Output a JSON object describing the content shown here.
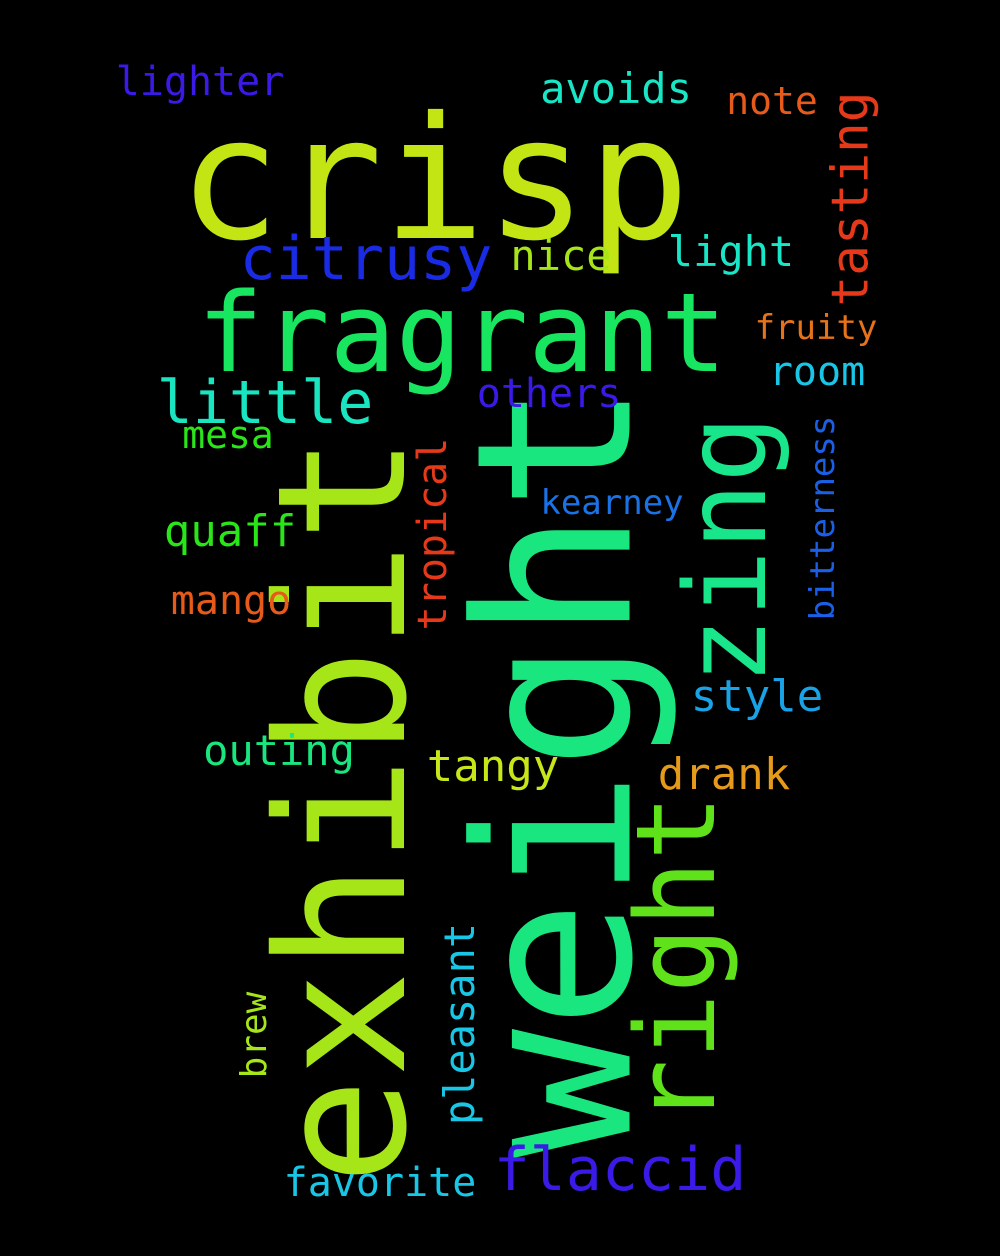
{
  "words": [
    {
      "id": "crisp",
      "text": "crisp",
      "color": "#c3e514"
    },
    {
      "id": "weight",
      "text": "weight",
      "color": "#19e67f"
    },
    {
      "id": "exhibit",
      "text": "exhibit",
      "color": "#a6e619"
    },
    {
      "id": "fragrant",
      "text": "fragrant",
      "color": "#19e660"
    },
    {
      "id": "right",
      "text": "right",
      "color": "#5fe21a"
    },
    {
      "id": "zing",
      "text": "zing",
      "color": "#19e68b"
    },
    {
      "id": "citrusy",
      "text": "citrusy",
      "color": "#1a2be6"
    },
    {
      "id": "flaccid",
      "text": "flaccid",
      "color": "#3a1ae6"
    },
    {
      "id": "little",
      "text": "little",
      "color": "#19e6c0"
    },
    {
      "id": "tasting",
      "text": "tasting",
      "color": "#e6391a"
    },
    {
      "id": "lighter",
      "text": "lighter",
      "color": "#3a1ae6"
    },
    {
      "id": "avoids",
      "text": "avoids",
      "color": "#19e6c6"
    },
    {
      "id": "note",
      "text": "note",
      "color": "#e65a1a"
    },
    {
      "id": "nice",
      "text": "nice",
      "color": "#a6e619"
    },
    {
      "id": "light",
      "text": "light",
      "color": "#19e6c6"
    },
    {
      "id": "fruity",
      "text": "fruity",
      "color": "#e6721a"
    },
    {
      "id": "room",
      "text": "room",
      "color": "#19c6e6"
    },
    {
      "id": "others",
      "text": "others",
      "color": "#3a1ae6"
    },
    {
      "id": "mesa",
      "text": "mesa",
      "color": "#2ae619"
    },
    {
      "id": "bitterness",
      "text": "bitterness",
      "color": "#1a5fe6"
    },
    {
      "id": "tropical",
      "text": "tropical",
      "color": "#e6391a"
    },
    {
      "id": "kearney",
      "text": "kearney",
      "color": "#1a72e6"
    },
    {
      "id": "quaff",
      "text": "quaff",
      "color": "#2ae619"
    },
    {
      "id": "mango",
      "text": "mango",
      "color": "#e65a1a"
    },
    {
      "id": "style",
      "text": "style",
      "color": "#19a3e6"
    },
    {
      "id": "outing",
      "text": "outing",
      "color": "#19e67f"
    },
    {
      "id": "tangy",
      "text": "tangy",
      "color": "#c9e619"
    },
    {
      "id": "drank",
      "text": "drank",
      "color": "#e69a1a"
    },
    {
      "id": "pleasant",
      "text": "pleasant",
      "color": "#19c6e6"
    },
    {
      "id": "brew",
      "text": "brew",
      "color": "#a6e619"
    },
    {
      "id": "favorite",
      "text": "favorite",
      "color": "#19c6e6"
    }
  ]
}
